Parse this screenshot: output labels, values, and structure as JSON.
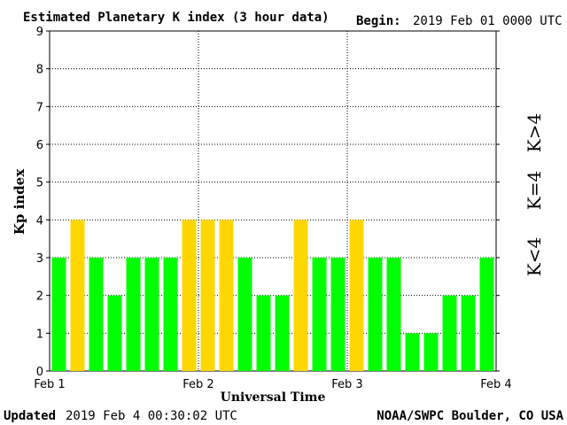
{
  "header": {
    "title": "Estimated Planetary K index (3 hour data)",
    "begin_label": "Begin:",
    "begin_value": "2019 Feb 01 0000 UTC"
  },
  "footer": {
    "updated_label": "Updated",
    "updated_value": "2019 Feb  4 00:30:02 UTC",
    "source": "NOAA/SWPC Boulder, CO USA"
  },
  "legend": {
    "high": "K>4",
    "mid": "K=4",
    "low": "K<4"
  },
  "colors": {
    "low": "#00ff00",
    "mid": "#ffd700",
    "high": "#ff0000",
    "grid": "#000000"
  },
  "chart_data": {
    "type": "bar",
    "title": "Estimated Planetary K index (3 hour data)",
    "xlabel": "Universal Time",
    "ylabel": "Kp index",
    "ylim": [
      0,
      9
    ],
    "grid": true,
    "legend_position": "right",
    "yticks": [
      "0",
      "1",
      "2",
      "3",
      "4",
      "5",
      "6",
      "7",
      "8",
      "9"
    ],
    "xtick_labels": [
      "Feb 1",
      "Feb 2",
      "Feb 3",
      "Feb 4"
    ],
    "values": [
      3,
      4,
      3,
      2,
      3,
      3,
      3,
      4,
      4,
      4,
      3,
      2,
      2,
      4,
      3,
      3,
      4,
      3,
      3,
      1,
      1,
      2,
      2,
      3
    ]
  }
}
